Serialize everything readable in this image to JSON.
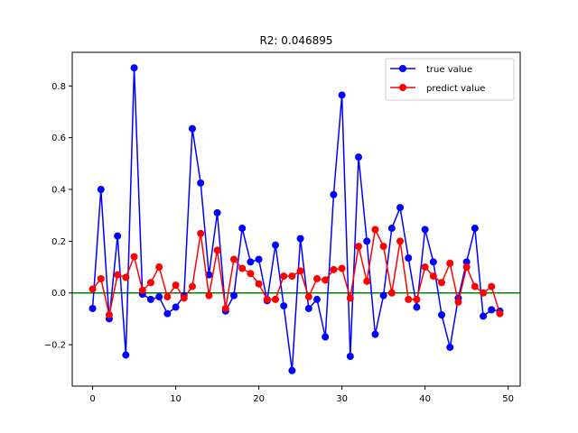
{
  "chart_data": {
    "type": "line",
    "title": "R2: 0.046895",
    "xlabel": "",
    "ylabel": "",
    "xlim": [
      -2.45,
      51.45
    ],
    "ylim": [
      -0.36,
      0.93
    ],
    "xticks": [
      0,
      10,
      20,
      30,
      40,
      50
    ],
    "yticks": [
      -0.2,
      0.0,
      0.2,
      0.4,
      0.6,
      0.8
    ],
    "xtick_labels": [
      "0",
      "10",
      "20",
      "30",
      "40",
      "50"
    ],
    "ytick_labels": [
      "−0.2",
      "0.0",
      "0.2",
      "0.4",
      "0.6",
      "0.8"
    ],
    "grid": false,
    "legend_position": "top-right",
    "reference_line": {
      "y": 0,
      "color": "#008000"
    },
    "x": [
      0,
      1,
      2,
      3,
      4,
      5,
      6,
      7,
      8,
      9,
      10,
      11,
      12,
      13,
      14,
      15,
      16,
      17,
      18,
      19,
      20,
      21,
      22,
      23,
      24,
      25,
      26,
      27,
      28,
      29,
      30,
      31,
      32,
      33,
      34,
      35,
      36,
      37,
      38,
      39,
      40,
      41,
      42,
      43,
      44,
      45,
      46,
      47,
      48,
      49
    ],
    "series": [
      {
        "name": "true value",
        "color": "#0000ff",
        "values": [
          -0.06,
          0.4,
          -0.1,
          0.22,
          -0.24,
          0.87,
          -0.005,
          -0.025,
          -0.015,
          -0.08,
          -0.055,
          -0.01,
          0.635,
          0.425,
          0.07,
          0.31,
          -0.07,
          -0.01,
          0.25,
          0.12,
          0.13,
          -0.03,
          0.185,
          -0.05,
          -0.3,
          0.21,
          -0.06,
          -0.025,
          -0.17,
          0.38,
          0.765,
          -0.245,
          0.525,
          0.2,
          -0.16,
          -0.01,
          0.25,
          0.33,
          0.135,
          -0.055,
          0.245,
          0.12,
          -0.085,
          -0.21,
          -0.02,
          0.12,
          0.25,
          -0.09,
          -0.065,
          -0.07
        ]
      },
      {
        "name": "predict value",
        "color": "#ff0000",
        "values": [
          0.015,
          0.055,
          -0.085,
          0.07,
          0.06,
          0.14,
          0.01,
          0.04,
          0.1,
          -0.015,
          0.03,
          -0.02,
          0.025,
          0.23,
          -0.01,
          0.165,
          -0.06,
          0.13,
          0.095,
          0.075,
          0.035,
          -0.025,
          -0.025,
          0.065,
          0.065,
          0.085,
          -0.015,
          0.055,
          0.05,
          0.09,
          0.095,
          -0.02,
          0.18,
          0.045,
          0.245,
          0.18,
          0.0,
          0.2,
          -0.025,
          -0.025,
          0.1,
          0.065,
          0.04,
          0.115,
          -0.035,
          0.1,
          0.025,
          0.0,
          0.025,
          -0.08
        ]
      }
    ]
  }
}
